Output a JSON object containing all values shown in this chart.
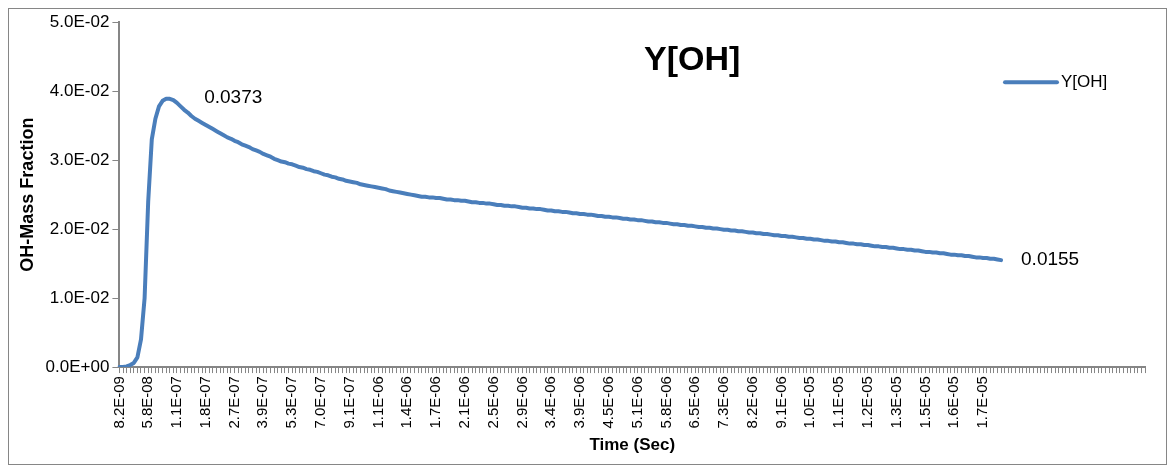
{
  "chart_data": {
    "type": "line",
    "title": "Y[OH]",
    "xlabel": "Time (Sec)",
    "ylabel": "OH-Mass Fraction",
    "categories": [
      "8.2E-09",
      null,
      null,
      null,
      null,
      null,
      null,
      null,
      "5.8E-08",
      null,
      null,
      null,
      null,
      null,
      null,
      null,
      "1.1E-07",
      null,
      null,
      null,
      null,
      null,
      null,
      null,
      "1.8E-07",
      null,
      null,
      null,
      null,
      null,
      null,
      null,
      "2.7E-07",
      null,
      null,
      null,
      null,
      null,
      null,
      null,
      "3.9E-07",
      null,
      null,
      null,
      null,
      null,
      null,
      null,
      "5.3E-07",
      null,
      null,
      null,
      null,
      null,
      null,
      null,
      "7.0E-07",
      null,
      null,
      null,
      null,
      null,
      null,
      null,
      "9.1E-07",
      null,
      null,
      null,
      null,
      null,
      null,
      null,
      "1.1E-06",
      null,
      null,
      null,
      null,
      null,
      null,
      null,
      "1.4E-06",
      null,
      null,
      null,
      null,
      null,
      null,
      null,
      "1.7E-06",
      null,
      null,
      null,
      null,
      null,
      null,
      null,
      "2.1E-06",
      null,
      null,
      null,
      null,
      null,
      null,
      null,
      "2.5E-06",
      null,
      null,
      null,
      null,
      null,
      null,
      null,
      "2.9E-06",
      null,
      null,
      null,
      null,
      null,
      null,
      null,
      "3.4E-06",
      null,
      null,
      null,
      null,
      null,
      null,
      null,
      "3.9E-06",
      null,
      null,
      null,
      null,
      null,
      null,
      null,
      "4.5E-06",
      null,
      null,
      null,
      null,
      null,
      null,
      null,
      "5.1E-06",
      null,
      null,
      null,
      null,
      null,
      null,
      null,
      "5.8E-06",
      null,
      null,
      null,
      null,
      null,
      null,
      null,
      "6.5E-06",
      null,
      null,
      null,
      null,
      null,
      null,
      null,
      "7.3E-06",
      null,
      null,
      null,
      null,
      null,
      null,
      null,
      "8.2E-06",
      null,
      null,
      null,
      null,
      null,
      null,
      null,
      "9.1E-06",
      null,
      null,
      null,
      null,
      null,
      null,
      null,
      "1.0E-05",
      null,
      null,
      null,
      null,
      null,
      null,
      null,
      "1.1E-05",
      null,
      null,
      null,
      null,
      null,
      null,
      null,
      "1.2E-05",
      null,
      null,
      null,
      null,
      null,
      null,
      null,
      "1.3E-05",
      null,
      null,
      null,
      null,
      null,
      null,
      null,
      "1.5E-05",
      null,
      null,
      null,
      null,
      null,
      null,
      null,
      "1.6E-05",
      null,
      null,
      null,
      null,
      null,
      null,
      null,
      "1.7E-05",
      null,
      null,
      null,
      null,
      null,
      null,
      null,
      null,
      null,
      null,
      null,
      null,
      null,
      null,
      null,
      null,
      null,
      null,
      null,
      null,
      null,
      null,
      null,
      null,
      null,
      null,
      null,
      null,
      null,
      null,
      null,
      null,
      null,
      null,
      null,
      null,
      null,
      null,
      null,
      null,
      null,
      null,
      null,
      null,
      null
    ],
    "series": [
      {
        "name": "Y[OH]",
        "color": "#4a7ebb",
        "values": [
          0,
          0,
          0.0001,
          0.0003,
          0.0006,
          0.0014,
          0.004,
          0.01,
          0.024,
          0.033,
          0.036,
          0.0378,
          0.0386,
          0.0389,
          0.0389,
          0.0387,
          0.0383,
          0.0378,
          0.0373,
          0.0369,
          0.0364,
          0.036,
          0.0357,
          0.0354,
          0.0351,
          0.0348,
          0.0345,
          0.0342,
          0.0339,
          0.0336,
          0.0333,
          0.0331,
          0.0328,
          0.0326,
          0.0323,
          0.0321,
          0.0319,
          0.0316,
          0.0314,
          0.0312,
          0.0309,
          0.0307,
          0.0305,
          0.0302,
          0.03,
          0.0298,
          0.0297,
          0.0295,
          0.0294,
          0.0292,
          0.029,
          0.0289,
          0.0287,
          0.0286,
          0.0284,
          0.0283,
          0.0281,
          0.0279,
          0.0278,
          0.0276,
          0.0275,
          0.0273,
          0.0272,
          0.027,
          0.0269,
          0.0268,
          0.0267,
          0.0265,
          0.0264,
          0.0263,
          0.0262,
          0.0261,
          0.026,
          0.0259,
          0.0258,
          0.0256,
          0.0255,
          0.0254,
          0.0253,
          0.0252,
          0.0251,
          0.025,
          0.0249,
          0.0248,
          0.0247,
          0.0247,
          0.0246,
          0.0246,
          0.0245,
          0.0245,
          0.0244,
          0.0243,
          0.0243,
          0.0242,
          0.0242,
          0.0241,
          0.0241,
          0.024,
          0.0239,
          0.0239,
          0.0238,
          0.0238,
          0.0237,
          0.0237,
          0.0236,
          0.0235,
          0.0235,
          0.0234,
          0.0234,
          0.0233,
          0.0233,
          0.0232,
          0.0231,
          0.0231,
          0.023,
          0.023,
          0.0229,
          0.0229,
          0.0228,
          0.0227,
          0.0227,
          0.0226,
          0.0226,
          0.0225,
          0.0225,
          0.0224,
          0.0223,
          0.0223,
          0.0222,
          0.0222,
          0.0221,
          0.0221,
          0.022,
          0.0219,
          0.0219,
          0.0218,
          0.0218,
          0.0217,
          0.0217,
          0.0216,
          0.0215,
          0.0215,
          0.0214,
          0.0214,
          0.0213,
          0.0213,
          0.0212,
          0.0211,
          0.0211,
          0.021,
          0.021,
          0.0209,
          0.0209,
          0.0208,
          0.0207,
          0.0207,
          0.0206,
          0.0206,
          0.0205,
          0.0205,
          0.0204,
          0.0203,
          0.0203,
          0.0202,
          0.0202,
          0.0201,
          0.0201,
          0.02,
          0.0199,
          0.0199,
          0.0198,
          0.0198,
          0.0197,
          0.0197,
          0.0196,
          0.0195,
          0.0195,
          0.0194,
          0.0194,
          0.0193,
          0.0193,
          0.0192,
          0.0191,
          0.0191,
          0.019,
          0.019,
          0.0189,
          0.0189,
          0.0188,
          0.0187,
          0.0187,
          0.0186,
          0.0186,
          0.0185,
          0.0185,
          0.0184,
          0.0183,
          0.0183,
          0.0182,
          0.0182,
          0.0181,
          0.0181,
          0.018,
          0.0179,
          0.0179,
          0.0178,
          0.0178,
          0.0177,
          0.0177,
          0.0176,
          0.0175,
          0.0175,
          0.0174,
          0.0174,
          0.0173,
          0.0173,
          0.0172,
          0.0171,
          0.0171,
          0.017,
          0.017,
          0.0169,
          0.0169,
          0.0168,
          0.0167,
          0.0167,
          0.0166,
          0.0166,
          0.0165,
          0.0165,
          0.0164,
          0.0163,
          0.0163,
          0.0162,
          0.0162,
          0.0161,
          0.0161,
          0.016,
          0.0159,
          0.0159,
          0.0158,
          0.0158,
          0.0157,
          0.0157,
          0.0156,
          0.0155,
          null,
          null,
          null,
          null,
          null,
          null,
          null,
          null,
          null,
          null,
          null,
          null,
          null,
          null,
          null,
          null,
          null,
          null,
          null,
          null,
          null,
          null,
          null,
          null,
          null,
          null,
          null,
          null,
          null,
          null,
          null,
          null,
          null,
          null,
          null,
          null,
          null,
          null,
          null,
          null
        ],
        "value_labels": [
          null,
          null,
          null,
          null,
          null,
          null,
          null,
          null,
          null,
          null,
          null,
          null,
          null,
          null,
          null,
          null,
          null,
          null,
          "0.0373",
          null,
          null,
          null,
          null,
          null,
          null,
          null,
          null,
          null,
          null,
          null,
          null,
          null,
          null,
          null,
          null,
          null,
          null,
          null,
          null,
          null,
          null,
          null,
          null,
          null,
          null,
          null,
          null,
          null,
          null,
          null,
          null,
          null,
          null,
          null,
          null,
          null,
          null,
          null,
          null,
          null,
          null,
          null,
          null,
          null,
          null,
          null,
          null,
          null,
          null,
          null,
          null,
          null,
          null,
          null,
          null,
          null,
          null,
          null,
          null,
          null,
          null,
          null,
          null,
          null,
          null,
          null,
          null,
          null,
          null,
          null,
          null,
          null,
          null,
          null,
          null,
          null,
          null,
          null,
          null,
          null,
          null,
          null,
          null,
          null,
          null,
          null,
          null,
          null,
          null,
          null,
          null,
          null,
          null,
          null,
          null,
          null,
          null,
          null,
          null,
          null,
          null,
          null,
          null,
          null,
          null,
          null,
          null,
          null,
          null,
          null,
          null,
          null,
          null,
          null,
          null,
          null,
          null,
          null,
          null,
          null,
          null,
          null,
          null,
          null,
          null,
          null,
          null,
          null,
          null,
          null,
          null,
          null,
          null,
          null,
          null,
          null,
          null,
          null,
          null,
          null,
          null,
          null,
          null,
          null,
          null,
          null,
          null,
          null,
          null,
          null,
          null,
          null,
          null,
          null,
          null,
          null,
          null,
          null,
          null,
          null,
          null,
          null,
          null,
          null,
          null,
          null,
          null,
          null,
          null,
          null,
          null,
          null,
          null,
          null,
          null,
          null,
          null,
          null,
          null,
          null,
          null,
          null,
          null,
          null,
          null,
          null,
          null,
          null,
          null,
          null,
          null,
          null,
          null,
          null,
          null,
          null,
          null,
          null,
          null,
          null,
          null,
          null,
          null,
          null,
          null,
          null,
          null,
          null,
          null,
          null,
          null,
          null,
          null,
          null,
          null,
          null,
          null,
          null,
          null,
          null,
          null,
          null,
          null,
          null,
          null,
          "0.0155",
          null,
          null,
          null,
          null,
          null,
          null,
          null,
          null,
          null,
          null,
          null,
          null,
          null,
          null,
          null,
          null,
          null,
          null,
          null,
          null,
          null,
          null,
          null,
          null,
          null,
          null,
          null,
          null,
          null,
          null,
          null,
          null,
          null,
          null,
          null,
          null,
          null,
          null,
          null,
          null
        ]
      }
    ],
    "ylim": [
      0,
      0.05
    ],
    "yticks": [
      {
        "value": 0,
        "label": "0.0E+00"
      },
      {
        "value": 0.01,
        "label": "1.0E-02"
      },
      {
        "value": 0.02,
        "label": "2.0E-02"
      },
      {
        "value": 0.03,
        "label": "3.0E-02"
      },
      {
        "value": 0.04,
        "label": "4.0E-02"
      },
      {
        "value": 0.05,
        "label": "5.0E-02"
      }
    ],
    "grid": false,
    "legend": "top right"
  }
}
